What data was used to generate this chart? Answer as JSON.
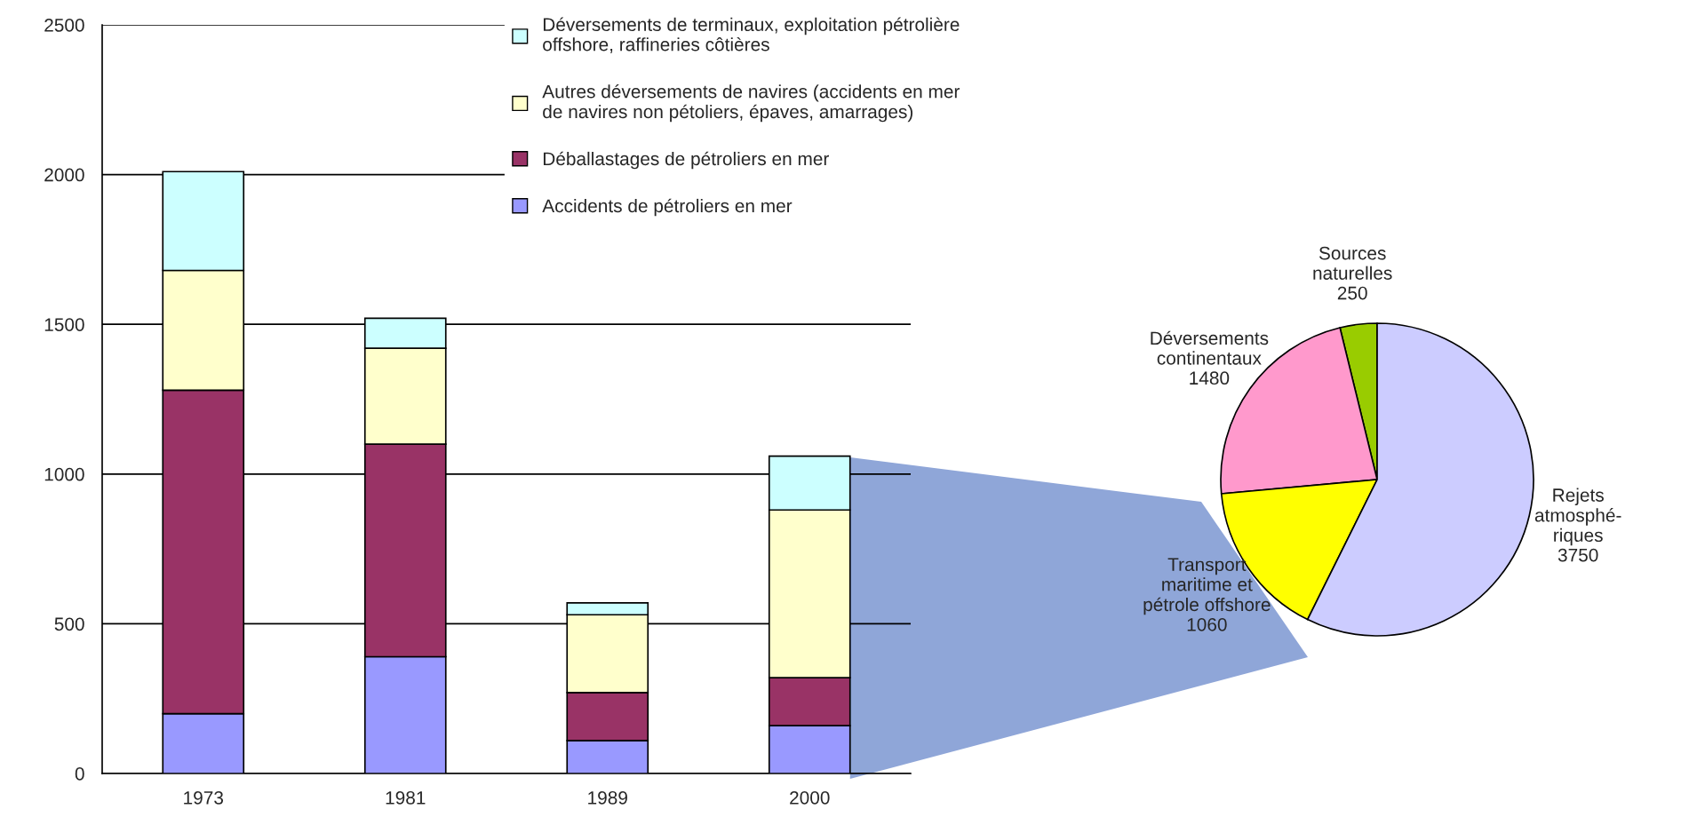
{
  "chart_data": [
    {
      "type": "bar",
      "stacked": true,
      "categories": [
        "1973",
        "1981",
        "1989",
        "2000"
      ],
      "ylim": [
        0,
        2500
      ],
      "yticks": [
        0,
        500,
        1000,
        1500,
        2000,
        2500
      ],
      "grid": "y",
      "legend": "top right",
      "series": [
        {
          "name": "Accidents de pétroliers en mer",
          "color": "#9999ff",
          "values": [
            200,
            390,
            110,
            160
          ]
        },
        {
          "name": "Déballastages de pétroliers en mer",
          "color": "#993366",
          "values": [
            1080,
            710,
            160,
            160
          ]
        },
        {
          "name": "Autres déversements de navires (accidents en mer\nde navires non pétoliers, épaves, amarrages)",
          "color": "#ffffcc",
          "values": [
            400,
            320,
            260,
            560
          ]
        },
        {
          "name": "Déversements de terminaux, exploitation pétrolière\noffshore, raffineries côtières",
          "color": "#ccffff",
          "values": [
            330,
            100,
            40,
            180
          ]
        }
      ]
    },
    {
      "type": "pie",
      "categories": [
        "Sources\nnaturelles",
        "Déversements\ncontinentaux",
        "Transport\nmaritime et\npétrole offshore",
        "Rejets\natmosphé-\nriques"
      ],
      "values": [
        250,
        1480,
        1060,
        3750
      ],
      "colors": [
        "#99cc00",
        "#ff99cc",
        "#ffff00",
        "#ccccff"
      ],
      "data_labels": true
    }
  ]
}
